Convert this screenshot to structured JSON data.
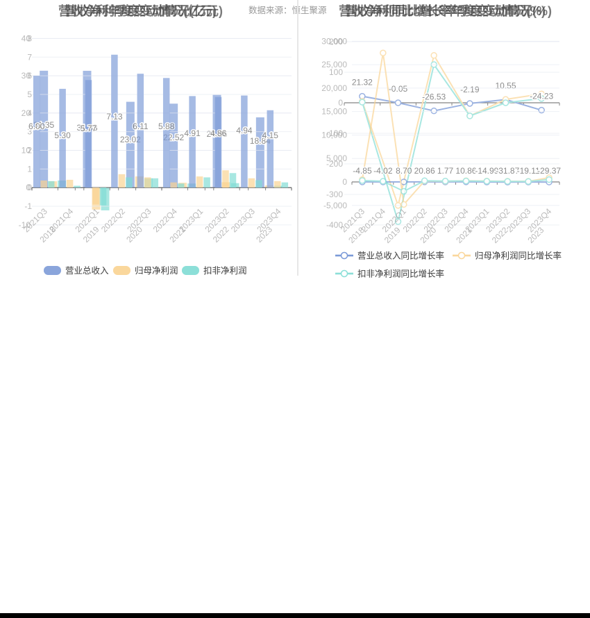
{
  "source_note": "数据来源：恒生聚源",
  "colors": {
    "revenue": "#7D9BD8",
    "revenue_line": "#6C8FD4",
    "profit": "#FAD392",
    "profit_ex": "#7FDCD4",
    "title": "#3c3c3c",
    "axis_label": "#999999",
    "grid_line": "#E6EAF2",
    "axis_line": "#4a4a4a",
    "data_label": "#555555",
    "divider": "#e7e7e7",
    "bottom_bar": "#000000"
  },
  "legend": {
    "left": [
      {
        "label": "营业总收入",
        "color": "revenue"
      },
      {
        "label": "归母净利润",
        "color": "profit"
      },
      {
        "label": "扣非净利润",
        "color": "profit_ex"
      }
    ],
    "right": [
      {
        "label": "营业总收入同比增长率",
        "color": "revenue_line"
      },
      {
        "label": "归母净利润同比增长率",
        "color": "profit"
      },
      {
        "label": "扣非净利润同比增长率",
        "color": "profit_ex"
      }
    ]
  },
  "chart_data": [
    {
      "id": "left-yearly",
      "type": "bar",
      "title": "营收净利年度变动情况(亿元)",
      "ylabel": "亿元",
      "categories": [
        "2018",
        "2019",
        "2020",
        "2021",
        "2022",
        "2023"
      ],
      "yticks": [
        {
          "v": 40,
          "label": "40"
        },
        {
          "v": 30,
          "label": "30"
        },
        {
          "v": 20,
          "label": "20"
        },
        {
          "v": 10,
          "label": "10"
        },
        {
          "v": 0,
          "label": "0"
        },
        {
          "v": -10,
          "label": "-10"
        }
      ],
      "ylim": [
        -10,
        40
      ],
      "series": [
        {
          "name": "营业总收入",
          "color": "revenue",
          "values": [
            31.35,
            31.33,
            23.02,
            22.52,
            24.86,
            18.84
          ],
          "labels": [
            "31.35",
            "31.33",
            "23.02",
            "22.52",
            "24.86",
            "18.84"
          ]
        },
        {
          "name": "归母净利润",
          "color": "profit",
          "values": [
            1.7,
            -5.9,
            3.0,
            1.3,
            1.45,
            0.6
          ]
        },
        {
          "name": "扣非净利润",
          "color": "profit_ex",
          "values": [
            1.9,
            -6.1,
            2.5,
            1.1,
            1.2,
            0.5
          ]
        }
      ]
    },
    {
      "id": "left-quarterly",
      "type": "bar",
      "title": "营收净利季度变动情况(亿元)",
      "ylabel": "亿元",
      "categories": [
        "2021Q3",
        "2021Q4",
        "2022Q1",
        "2022Q2",
        "2022Q3",
        "2022Q4",
        "2023Q1",
        "2023Q2",
        "2023Q3",
        "2023Q4"
      ],
      "yticks": [
        {
          "v": 8,
          "label": "8"
        },
        {
          "v": 7,
          "label": "7"
        },
        {
          "v": 6,
          "label": "6"
        },
        {
          "v": 5,
          "label": "5"
        },
        {
          "v": 4,
          "label": "4"
        },
        {
          "v": 3,
          "label": "3"
        },
        {
          "v": 2,
          "label": "2"
        },
        {
          "v": 1,
          "label": "1"
        },
        {
          "v": 0,
          "label": "0"
        },
        {
          "v": -1,
          "label": "-1"
        }
      ],
      "ylim": [
        -1,
        8
      ],
      "series": [
        {
          "name": "营业总收入",
          "color": "revenue",
          "values": [
            6.0,
            5.3,
            5.77,
            7.13,
            6.11,
            5.88,
            4.91,
            4.86,
            4.94,
            4.15
          ],
          "labels": [
            "6.00",
            "5.30",
            "5.77",
            "7.13",
            "6.11",
            "5.88",
            "4.91",
            "4.86",
            "4.94",
            "4.15"
          ]
        },
        {
          "name": "归母净利润",
          "color": "profit",
          "values": [
            0.38,
            0.42,
            -0.9,
            0.72,
            0.55,
            0.28,
            0.6,
            0.93,
            0.5,
            0.35
          ]
        },
        {
          "name": "扣非净利润",
          "color": "profit_ex",
          "values": [
            0.35,
            0.1,
            -0.95,
            0.55,
            0.5,
            0.22,
            0.55,
            0.78,
            0.4,
            0.28
          ]
        }
      ]
    },
    {
      "id": "right-yearly",
      "type": "line",
      "title": "营收净利同比增长率年度变动情况(%)",
      "ylabel": "%",
      "categories": [
        "2018",
        "2019",
        "2020",
        "2021",
        "2022",
        "2023"
      ],
      "yticks": [
        {
          "v": 200,
          "label": "200"
        },
        {
          "v": 100,
          "label": "100"
        },
        {
          "v": 0,
          "label": "0"
        },
        {
          "v": -100,
          "label": "-100"
        },
        {
          "v": -200,
          "label": "-200"
        },
        {
          "v": -300,
          "label": "-300"
        },
        {
          "v": -400,
          "label": "-400"
        }
      ],
      "ylim": [
        -400,
        200
      ],
      "series": [
        {
          "name": "营业总收入同比增长率",
          "color": "revenue_line",
          "values": [
            21.32,
            -0.05,
            -26.53,
            -2.19,
            10.55,
            -24.23
          ],
          "labels": [
            "21.32",
            "-0.05",
            "-26.53",
            "-2.19",
            "10.55",
            "-24.23"
          ]
        },
        {
          "name": "归母净利润同比增长率",
          "color": "profit",
          "values": [
            5,
            -336,
            155,
            -43,
            11,
            29
          ]
        },
        {
          "name": "扣非净利润同比增长率",
          "color": "profit_ex",
          "values": [
            2,
            -389,
            125,
            -43,
            0,
            14
          ]
        }
      ]
    },
    {
      "id": "right-quarterly",
      "type": "line",
      "title": "营收净利同比增长率季度变动情况(%)",
      "ylabel": "%",
      "categories": [
        "2021Q3",
        "2021Q4",
        "2022Q1",
        "2022Q2",
        "2022Q3",
        "2022Q4",
        "2023Q1",
        "2023Q2",
        "2023Q3",
        "2023Q4"
      ],
      "yticks": [
        {
          "v": 30000,
          "label": "30,000"
        },
        {
          "v": 25000,
          "label": "25,000"
        },
        {
          "v": 20000,
          "label": "20,000"
        },
        {
          "v": 15000,
          "label": "15,000"
        },
        {
          "v": 10000,
          "label": "10,000"
        },
        {
          "v": 5000,
          "label": "5,000"
        },
        {
          "v": 0,
          "label": "0"
        },
        {
          "v": -5000,
          "label": "-5,000"
        }
      ],
      "ylim": [
        -5000,
        30000
      ],
      "series": [
        {
          "name": "营业总收入同比增长率",
          "color": "revenue_line",
          "values": [
            -4.85,
            -4.02,
            8.7,
            20.86,
            1.77,
            10.86,
            -14.99,
            -31.87,
            -19.11,
            -29.37
          ],
          "labels": [
            "-4.85",
            "-4.02",
            "8.70",
            "20.86",
            "1.77",
            "10.86",
            "-14.99",
            "-31.87",
            "-19.11",
            "-29.37"
          ]
        },
        {
          "name": "归母净利润同比增长率",
          "color": "profit",
          "values": [
            500,
            27500,
            -4800,
            200,
            150,
            250,
            180,
            150,
            130,
            900
          ]
        },
        {
          "name": "扣非净利润同比增长率",
          "color": "profit_ex",
          "values": [
            300,
            150,
            -2000,
            250,
            180,
            200,
            150,
            120,
            100,
            500
          ]
        }
      ]
    }
  ]
}
